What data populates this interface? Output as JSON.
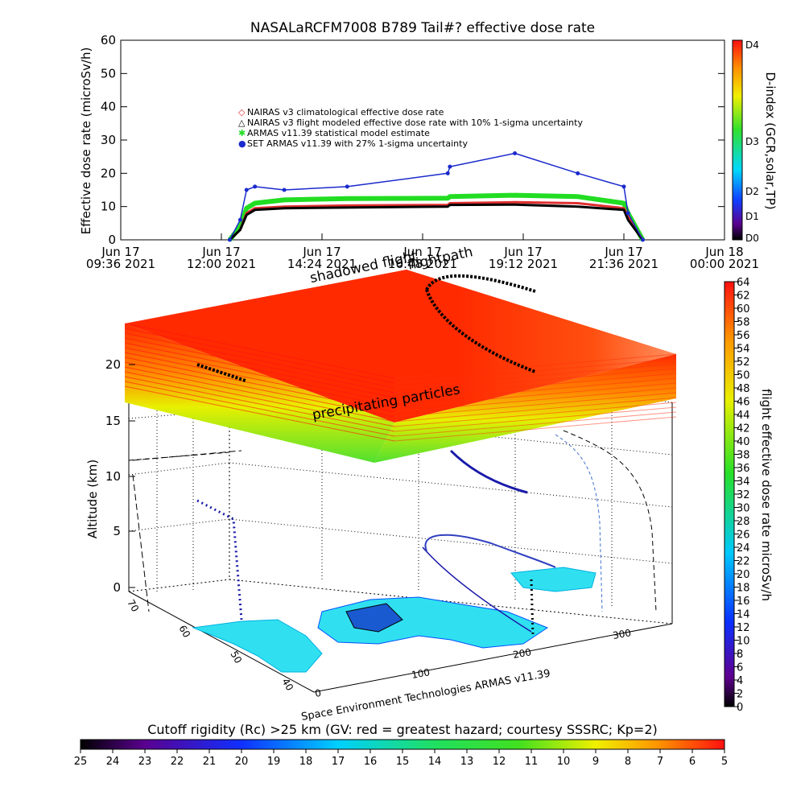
{
  "chart_data": [
    {
      "type": "line",
      "title": "NASALaRCFM7008  B789 Tail#? effective dose rate",
      "ylabel": "Effective dose rate (microSv/h)",
      "ylim": [
        0,
        60
      ],
      "y_ticks": [
        "0",
        "10",
        "20",
        "30",
        "40",
        "50",
        "60"
      ],
      "x_ticks": [
        {
          "l1": "Jun 17",
          "l2": "09:36 2021"
        },
        {
          "l1": "Jun 17",
          "l2": "12:00 2021"
        },
        {
          "l1": "Jun 17",
          "l2": "14:24 2021"
        },
        {
          "l1": "Jun 17",
          "l2": "16:48 2021"
        },
        {
          "l1": "Jun 17",
          "l2": "19:12 2021"
        },
        {
          "l1": "Jun 17",
          "l2": "21:36 2021"
        },
        {
          "l1": "Jun 18",
          "l2": "00:00 2021"
        }
      ],
      "x_hours": [
        12.2,
        12.45,
        12.6,
        12.8,
        13.5,
        15,
        17.4,
        17.45,
        19,
        20.5,
        21.6,
        21.7,
        22.05
      ],
      "legend_position": "top-center",
      "series": [
        {
          "name": "NAIRAS v3 climatological effective dose rate",
          "color": "#e03030",
          "values": [
            0,
            3,
            8,
            9.5,
            10,
            10.3,
            10.5,
            11,
            11.3,
            11,
            9.5,
            7,
            0
          ]
        },
        {
          "name": "NAIRAS v3 flight modeled effective dose rate with 10% 1-sigma uncertainty",
          "color": "#000000",
          "values": [
            0,
            3,
            7.5,
            9,
            9.5,
            9.7,
            10,
            10.5,
            10.6,
            10,
            9,
            6,
            0
          ]
        },
        {
          "name": "ARMAS v11.39 statistical model estimate",
          "color": "#22dd22",
          "values": [
            0,
            4,
            9.5,
            11,
            12,
            12.4,
            12.5,
            13,
            13.4,
            13,
            11,
            8,
            0
          ]
        },
        {
          "name": "SET ARMAS v11.39 with 27% 1-sigma uncertainty",
          "color": "#1a2acc",
          "values": [
            0,
            6,
            15,
            16,
            15,
            16,
            20,
            22,
            26,
            20,
            16,
            8,
            0
          ]
        }
      ],
      "color_scale": {
        "label": "D-index (GCR,solar,TP)",
        "ticks": [
          "D4",
          "D3",
          "D2",
          "D1",
          "D0"
        ]
      }
    },
    {
      "type": "heatmap",
      "zlabel": "Altitude (km)",
      "z_ticks": [
        "0",
        "5",
        "10",
        "15",
        "20"
      ],
      "lat_ticks": [
        "70",
        "60",
        "50",
        "40"
      ],
      "lon_ticks": [
        "0",
        "100",
        "200",
        "300"
      ],
      "annotations": [
        "flightpath",
        "shadowed flight",
        "precipitating particles"
      ],
      "credit": "Space Environment Technologies ARMAS v11.39",
      "color_scale": {
        "label": "flight effective dose rate microSv/h",
        "min": 0,
        "max": 64,
        "ticks": [
          "64",
          "62",
          "60",
          "58",
          "56",
          "54",
          "52",
          "50",
          "48",
          "46",
          "44",
          "42",
          "40",
          "38",
          "36",
          "34",
          "32",
          "30",
          "28",
          "26",
          "24",
          "22",
          "20",
          "18",
          "16",
          "14",
          "12",
          "10",
          "8",
          "6",
          "4",
          "2",
          "0"
        ]
      }
    },
    {
      "type": "colorbar",
      "title": "Cutoff rigidity (Rc) >25 km (GV: red = greatest hazard; courtesy SSSRC; Kp=2)",
      "ticks": [
        "25",
        "24",
        "23",
        "22",
        "21",
        "20",
        "19",
        "18",
        "17",
        "16",
        "15",
        "14",
        "13",
        "12",
        "11",
        "10",
        "9",
        "8",
        "7",
        "6",
        "5"
      ]
    }
  ]
}
